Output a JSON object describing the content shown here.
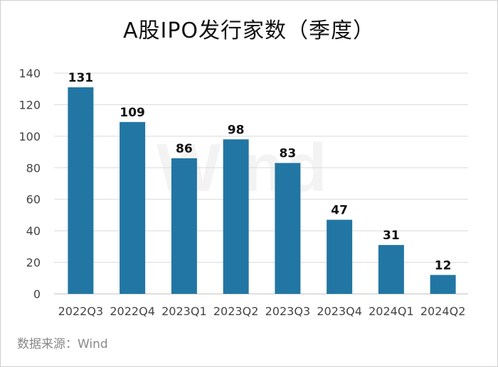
{
  "title": "A股IPO发行家数（季度）",
  "source": "数据来源：Wind",
  "watermark": "Wind",
  "colors": {
    "bar": "#2276a3",
    "grid": "#d9d9d9",
    "axis_text": "#444444",
    "label": "#111111"
  },
  "chart_data": {
    "type": "bar",
    "title": "A股IPO发行家数（季度）",
    "categories": [
      "2022Q3",
      "2022Q4",
      "2023Q1",
      "2023Q2",
      "2023Q3",
      "2023Q4",
      "2024Q1",
      "2024Q2"
    ],
    "values": [
      131,
      109,
      86,
      98,
      83,
      47,
      31,
      12
    ],
    "xlabel": "",
    "ylabel": "",
    "ylim": [
      0,
      140
    ],
    "yticks": [
      0,
      20,
      40,
      60,
      80,
      100,
      120,
      140
    ],
    "grid": true,
    "legend": "none",
    "data_labels": true
  }
}
